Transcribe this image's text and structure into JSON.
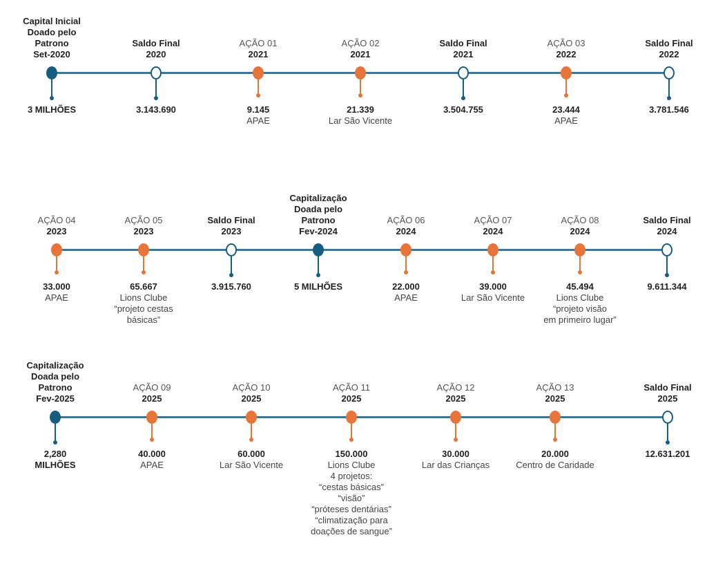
{
  "colors": {
    "patron": "#175d82",
    "action": "#e8743a",
    "line": "#3f7595"
  },
  "rows": [
    {
      "nodes": [
        {
          "kind": "filled",
          "top_bold": [
            "Capital Inicial",
            "Doado pelo",
            "Patrono",
            "Set-2020"
          ],
          "value": "3 MILHÕES"
        },
        {
          "kind": "hollow",
          "top_bold": [
            "Saldo Final",
            "2020"
          ],
          "value": "3.143.690"
        },
        {
          "kind": "action",
          "action": "AÇÃO 01",
          "top_bold": [
            "2021"
          ],
          "value": "9.145",
          "desc": [
            "APAE"
          ]
        },
        {
          "kind": "action",
          "action": "AÇÃO 02",
          "top_bold": [
            "2021"
          ],
          "value": "21.339",
          "desc": [
            "Lar São Vicente"
          ]
        },
        {
          "kind": "hollow",
          "top_bold": [
            "Saldo Final",
            "2021"
          ],
          "value": "3.504.755"
        },
        {
          "kind": "action",
          "action": "AÇÃO 03",
          "top_bold": [
            "2022"
          ],
          "value": "23.444",
          "desc": [
            "APAE"
          ]
        },
        {
          "kind": "hollow",
          "top_bold": [
            "Saldo Final",
            "2022"
          ],
          "value": "3.781.546"
        }
      ]
    },
    {
      "nodes": [
        {
          "kind": "action",
          "action": "AÇÃO 04",
          "top_bold": [
            "2023"
          ],
          "value": "33.000",
          "desc": [
            "APAE"
          ]
        },
        {
          "kind": "action",
          "action": "AÇÃO 05",
          "top_bold": [
            "2023"
          ],
          "value": "65.667",
          "desc": [
            "Lions Clube",
            "“projeto cestas",
            "básicas”"
          ]
        },
        {
          "kind": "hollow",
          "top_bold": [
            "Saldo Final",
            "2023"
          ],
          "value": "3.915.760"
        },
        {
          "kind": "filled",
          "top_bold": [
            "Capitalização",
            "Doada pelo",
            "Patrono",
            "Fev-2024"
          ],
          "value": "5 MILHÕES"
        },
        {
          "kind": "action",
          "action": "AÇÃO 06",
          "top_bold": [
            "2024"
          ],
          "value": "22.000",
          "desc": [
            "APAE"
          ]
        },
        {
          "kind": "action",
          "action": "AÇÃO 07",
          "top_bold": [
            "2024"
          ],
          "value": "39.000",
          "desc": [
            "Lar São Vicente"
          ]
        },
        {
          "kind": "action",
          "action": "AÇÃO 08",
          "top_bold": [
            "2024"
          ],
          "value": "45.494",
          "desc": [
            "Lions Clube",
            "“projeto visão",
            "em primeiro lugar”"
          ]
        },
        {
          "kind": "hollow",
          "top_bold": [
            "Saldo Final",
            "2024"
          ],
          "value": "9.611.344"
        }
      ]
    },
    {
      "nodes": [
        {
          "kind": "filled",
          "top_bold": [
            "Capitalização",
            "Doada pelo",
            "Patrono",
            "Fev-2025"
          ],
          "value": "2,280",
          "value2": "MILHÕES"
        },
        {
          "kind": "action",
          "action": "AÇÃO 09",
          "top_bold": [
            "2025"
          ],
          "value": "40.000",
          "desc": [
            "APAE"
          ]
        },
        {
          "kind": "action",
          "action": "AÇÃO 10",
          "top_bold": [
            "2025"
          ],
          "value": "60.000",
          "desc": [
            "Lar São Vicente"
          ]
        },
        {
          "kind": "action",
          "action": "AÇÃO 11",
          "top_bold": [
            "2025"
          ],
          "value": "150.000",
          "desc": [
            "Lions Clube",
            "4 projetos:",
            "“cestas básicas”",
            "“visão”",
            "“próteses dentárias”",
            "“climatização para",
            "doações de sangue”"
          ]
        },
        {
          "kind": "action",
          "action": "AÇÃO 12",
          "top_bold": [
            "2025"
          ],
          "value": "30.000",
          "desc": [
            "Lar das Crianças"
          ]
        },
        {
          "kind": "action",
          "action": "AÇÃO 13",
          "top_bold": [
            "2025"
          ],
          "value": "20.000",
          "desc": [
            "Centro de Caridade"
          ]
        },
        {
          "kind": "hollow",
          "top_bold": [
            "Saldo Final",
            "2025"
          ],
          "value": "12.631.201"
        }
      ]
    }
  ]
}
